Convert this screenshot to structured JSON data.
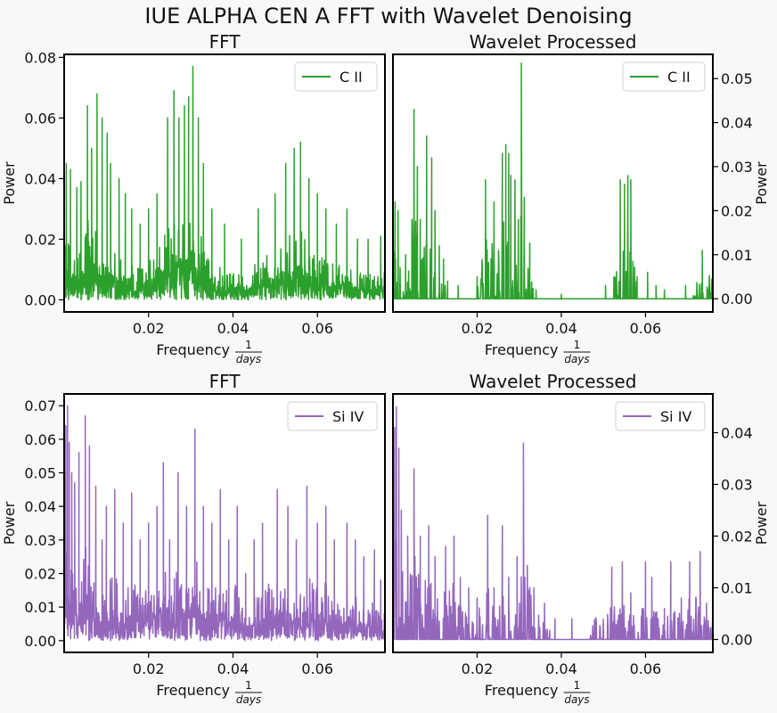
{
  "figure": {
    "title": "IUE ALPHA CEN A FFT with Wavelet Denoising"
  },
  "chart_data": [
    {
      "type": "line",
      "title": "FFT",
      "xlabel": "Frequency",
      "xlabel_unit_num": "1",
      "xlabel_unit_den": "days",
      "ylabel": "Power",
      "xlim": [
        0,
        0.076
      ],
      "ylim": [
        -0.004,
        0.081
      ],
      "xticks": [
        0.02,
        0.04,
        0.06
      ],
      "xtick_labels": [
        "0.02",
        "0.04",
        "0.06"
      ],
      "yticks": [
        0.0,
        0.02,
        0.04,
        0.06,
        0.08
      ],
      "ytick_labels": [
        "0.00",
        "0.02",
        "0.04",
        "0.06",
        "0.08"
      ],
      "y_axis_side": "left",
      "legend": "top-right",
      "series": [
        {
          "name": "C II",
          "color": "#2ca02c",
          "x": [
            0.0005,
            0.0015,
            0.003,
            0.004,
            0.0055,
            0.0065,
            0.0078,
            0.009,
            0.0102,
            0.011,
            0.013,
            0.0145,
            0.016,
            0.018,
            0.02,
            0.022,
            0.0245,
            0.026,
            0.0272,
            0.0285,
            0.0295,
            0.0305,
            0.0318,
            0.033,
            0.035,
            0.038,
            0.042,
            0.046,
            0.05,
            0.0525,
            0.0545,
            0.056,
            0.058,
            0.06,
            0.062,
            0.0645,
            0.067,
            0.0695,
            0.072,
            0.075
          ],
          "y": [
            0.045,
            0.043,
            0.037,
            0.039,
            0.064,
            0.05,
            0.068,
            0.06,
            0.055,
            0.045,
            0.04,
            0.035,
            0.03,
            0.025,
            0.03,
            0.035,
            0.06,
            0.069,
            0.06,
            0.064,
            0.067,
            0.077,
            0.06,
            0.045,
            0.03,
            0.025,
            0.02,
            0.03,
            0.035,
            0.045,
            0.05,
            0.052,
            0.04,
            0.035,
            0.03,
            0.025,
            0.03,
            0.02,
            0.02,
            0.021
          ]
        }
      ]
    },
    {
      "type": "line",
      "title": "Wavelet Processed",
      "xlabel": "Frequency",
      "xlabel_unit_num": "1",
      "xlabel_unit_den": "days",
      "ylabel": "Power",
      "xlim": [
        0,
        0.076
      ],
      "ylim": [
        -0.003,
        0.0555
      ],
      "xticks": [
        0.02,
        0.04,
        0.06
      ],
      "xtick_labels": [
        "0.02",
        "0.04",
        "0.06"
      ],
      "yticks": [
        0.0,
        0.01,
        0.02,
        0.03,
        0.04,
        0.05
      ],
      "ytick_labels": [
        "0.00",
        "0.01",
        "0.02",
        "0.03",
        "0.04",
        "0.05"
      ],
      "y_axis_side": "right",
      "legend": "top-right",
      "series": [
        {
          "name": "C II",
          "color": "#2ca02c",
          "x": [
            0.0005,
            0.0012,
            0.003,
            0.0045,
            0.005,
            0.0058,
            0.0065,
            0.008,
            0.0092,
            0.01,
            0.011,
            0.012,
            0.013,
            0.0155,
            0.02,
            0.022,
            0.024,
            0.026,
            0.0268,
            0.0275,
            0.028,
            0.029,
            0.0298,
            0.0305,
            0.0312,
            0.0325,
            0.034,
            0.04,
            0.0505,
            0.0525,
            0.054,
            0.055,
            0.0558,
            0.0565,
            0.058,
            0.0605,
            0.0625,
            0.0645,
            0.0695,
            0.0735
          ],
          "y": [
            0.022,
            0.02,
            0.01,
            0.018,
            0.043,
            0.03,
            0.018,
            0.037,
            0.032,
            0.02,
            0.012,
            0.009,
            0.004,
            0.003,
            0.005,
            0.027,
            0.022,
            0.033,
            0.035,
            0.033,
            0.028,
            0.027,
            0.018,
            0.0535,
            0.023,
            0.0126,
            0.002,
            0.001,
            0.003,
            0.005,
            0.027,
            0.026,
            0.028,
            0.027,
            0.005,
            0.006,
            0.003,
            0.002,
            0.003,
            0.011
          ]
        }
      ]
    },
    {
      "type": "line",
      "title": "FFT",
      "xlabel": "Frequency",
      "xlabel_unit_num": "1",
      "xlabel_unit_den": "days",
      "ylabel": "Power",
      "xlim": [
        0,
        0.076
      ],
      "ylim": [
        -0.0035,
        0.0735
      ],
      "xticks": [
        0.02,
        0.04,
        0.06
      ],
      "xtick_labels": [
        "0.02",
        "0.04",
        "0.06"
      ],
      "yticks": [
        0.0,
        0.01,
        0.02,
        0.03,
        0.04,
        0.05,
        0.06,
        0.07
      ],
      "ytick_labels": [
        "0.00",
        "0.01",
        "0.02",
        "0.03",
        "0.04",
        "0.05",
        "0.06",
        "0.07"
      ],
      "y_axis_side": "left",
      "legend": "top-right",
      "series": [
        {
          "name": "Si IV",
          "color": "#9467bd",
          "x": [
            0.0004,
            0.0008,
            0.0012,
            0.0018,
            0.0025,
            0.0035,
            0.005,
            0.006,
            0.0075,
            0.009,
            0.01,
            0.012,
            0.014,
            0.016,
            0.018,
            0.02,
            0.022,
            0.0235,
            0.025,
            0.027,
            0.029,
            0.031,
            0.033,
            0.035,
            0.037,
            0.039,
            0.041,
            0.043,
            0.045,
            0.047,
            0.0505,
            0.053,
            0.055,
            0.0575,
            0.06,
            0.062,
            0.064,
            0.067,
            0.069,
            0.071,
            0.0735,
            0.075
          ],
          "y": [
            0.064,
            0.07,
            0.059,
            0.05,
            0.047,
            0.056,
            0.067,
            0.058,
            0.046,
            0.03,
            0.04,
            0.045,
            0.035,
            0.044,
            0.03,
            0.035,
            0.04,
            0.053,
            0.03,
            0.05,
            0.04,
            0.063,
            0.04,
            0.035,
            0.045,
            0.03,
            0.04,
            0.02,
            0.03,
            0.035,
            0.045,
            0.04,
            0.03,
            0.046,
            0.035,
            0.04,
            0.03,
            0.035,
            0.03,
            0.025,
            0.027,
            0.018
          ]
        }
      ]
    },
    {
      "type": "line",
      "title": "Wavelet Processed",
      "xlabel": "Frequency",
      "xlabel_unit_num": "1",
      "xlabel_unit_den": "days",
      "ylabel": "Power",
      "xlim": [
        0,
        0.076
      ],
      "ylim": [
        -0.0025,
        0.0475
      ],
      "xticks": [
        0.02,
        0.04,
        0.06
      ],
      "xtick_labels": [
        "0.02",
        "0.04",
        "0.06"
      ],
      "yticks": [
        0.0,
        0.01,
        0.02,
        0.03,
        0.04
      ],
      "ytick_labels": [
        "0.00",
        "0.01",
        "0.02",
        "0.03",
        "0.04"
      ],
      "y_axis_side": "right",
      "legend": "top-right",
      "series": [
        {
          "name": "Si IV",
          "color": "#9467bd",
          "x": [
            0.0004,
            0.0008,
            0.0014,
            0.002,
            0.0035,
            0.005,
            0.0065,
            0.0085,
            0.01,
            0.0125,
            0.0145,
            0.016,
            0.018,
            0.02,
            0.0225,
            0.024,
            0.026,
            0.0275,
            0.0295,
            0.031,
            0.0335,
            0.036,
            0.0385,
            0.0425,
            0.0435,
            0.052,
            0.0545,
            0.0565,
            0.06,
            0.0615,
            0.0645,
            0.066,
            0.0685,
            0.0705,
            0.073,
            0.0745
          ],
          "y": [
            0.041,
            0.045,
            0.037,
            0.025,
            0.02,
            0.033,
            0.02,
            0.022,
            0.016,
            0.018,
            0.02,
            0.012,
            0.01,
            0.008,
            0.024,
            0.01,
            0.022,
            0.012,
            0.016,
            0.038,
            0.01,
            0.007,
            0.004,
            0.004,
            0.0,
            0.014,
            0.015,
            0.009,
            0.015,
            0.012,
            0.006,
            0.015,
            0.008,
            0.015,
            0.017,
            0.007
          ]
        }
      ]
    }
  ]
}
